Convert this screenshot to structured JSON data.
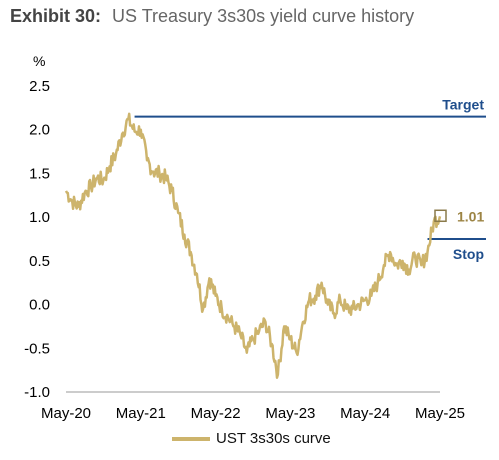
{
  "header": {
    "exhibit_label": "Exhibit 30:",
    "title": "US Treasury 3s30s yield curve history"
  },
  "chart_data": {
    "type": "line",
    "ylabel": "%",
    "ylim": [
      -1.0,
      2.5
    ],
    "yticks": [
      2.5,
      2.0,
      1.5,
      1.0,
      0.5,
      0.0,
      -0.5,
      -1.0
    ],
    "ytick_labels": [
      "2.5",
      "2.0",
      "1.5",
      "1.0",
      "0.5",
      "0.0",
      "-0.5",
      "-1.0"
    ],
    "xlim": [
      "2020-05",
      "2025-05"
    ],
    "xticks": [
      "2020-05",
      "2021-05",
      "2022-05",
      "2023-05",
      "2024-05",
      "2025-05"
    ],
    "xtick_labels": [
      "May-20",
      "May-21",
      "May-22",
      "May-23",
      "May-24",
      "May-25"
    ],
    "grid": false,
    "series": [
      {
        "name": "UST 3s30s curve",
        "color": "#CDB46C",
        "x": [
          "2020-05",
          "2020-06",
          "2020-07",
          "2020-08",
          "2020-09",
          "2020-10",
          "2020-11",
          "2020-12",
          "2021-01",
          "2021-02",
          "2021-03",
          "2021-04",
          "2021-05",
          "2021-06",
          "2021-07",
          "2021-08",
          "2021-09",
          "2021-10",
          "2021-11",
          "2021-12",
          "2022-01",
          "2022-02",
          "2022-03",
          "2022-04",
          "2022-05",
          "2022-06",
          "2022-07",
          "2022-08",
          "2022-09",
          "2022-10",
          "2022-11",
          "2022-12",
          "2023-01",
          "2023-02",
          "2023-03",
          "2023-04",
          "2023-05",
          "2023-06",
          "2023-07",
          "2023-08",
          "2023-09",
          "2023-10",
          "2023-11",
          "2023-12",
          "2024-01",
          "2024-02",
          "2024-03",
          "2024-04",
          "2024-05",
          "2024-06",
          "2024-07",
          "2024-08",
          "2024-09",
          "2024-10",
          "2024-11",
          "2024-12",
          "2025-01",
          "2025-02",
          "2025-03",
          "2025-04",
          "2025-05"
        ],
        "values": [
          1.3,
          1.18,
          1.12,
          1.28,
          1.35,
          1.45,
          1.42,
          1.58,
          1.72,
          1.95,
          2.12,
          1.98,
          2.0,
          1.65,
          1.52,
          1.5,
          1.45,
          1.3,
          1.05,
          0.8,
          0.6,
          0.35,
          -0.05,
          0.3,
          0.1,
          -0.05,
          -0.15,
          -0.25,
          -0.35,
          -0.55,
          -0.4,
          -0.3,
          -0.2,
          -0.45,
          -0.8,
          -0.25,
          -0.4,
          -0.55,
          -0.2,
          0.05,
          0.1,
          0.25,
          0.0,
          -0.1,
          0.05,
          -0.05,
          -0.05,
          0.0,
          0.05,
          0.1,
          0.25,
          0.45,
          0.6,
          0.45,
          0.5,
          0.4,
          0.55,
          0.45,
          0.6,
          0.95,
          1.01
        ]
      }
    ],
    "reference_lines": [
      {
        "label": "Target",
        "y": 2.15,
        "x_start": "2021-04",
        "color": "#1F4E8C"
      },
      {
        "label": "Stop",
        "y": 0.75,
        "x_start": "2025-03",
        "color": "#1F4E8C"
      }
    ],
    "annotations": [
      {
        "text": "1.01",
        "x": "2025-05",
        "y": 1.01,
        "color": "#9C8444"
      }
    ]
  }
}
